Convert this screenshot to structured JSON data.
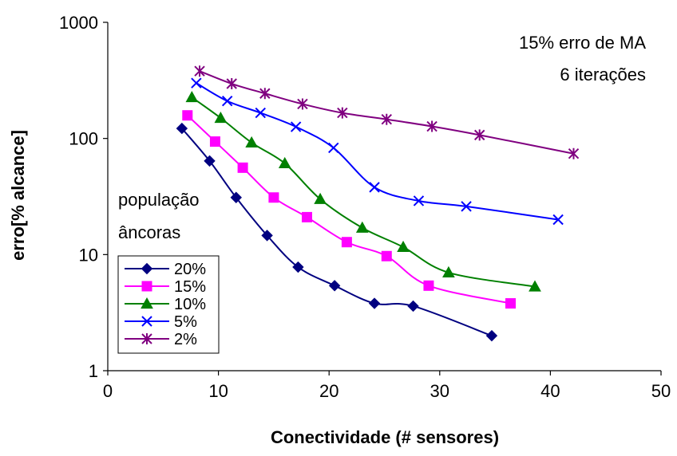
{
  "chart_data": {
    "type": "line",
    "xlabel": "Conectividade (# sensores)",
    "ylabel": "erro[% alcance]",
    "xlim": [
      0,
      50
    ],
    "ylim": [
      1,
      1000
    ],
    "y_scale": "log",
    "x_ticks": [
      "0",
      "10",
      "20",
      "30",
      "40",
      "50"
    ],
    "y_ticks": [
      "1",
      "10",
      "100",
      "1000"
    ],
    "grid": false,
    "legend_position": "bottom-left",
    "legend_title": [
      "população",
      "âncoras"
    ],
    "annotations": [
      "15% erro de MA",
      "6 iterações"
    ],
    "series": [
      {
        "name": "20%",
        "color": "#000080",
        "marker": "diamond",
        "x": [
          6.7,
          9.2,
          11.6,
          14.4,
          17.2,
          20.5,
          24.1,
          27.6,
          34.7
        ],
        "y": [
          122,
          64,
          31,
          14.6,
          7.8,
          5.4,
          3.8,
          3.6,
          2.0
        ]
      },
      {
        "name": "15%",
        "color": "#FF00FF",
        "marker": "square",
        "x": [
          7.2,
          9.7,
          12.2,
          15.0,
          18.0,
          21.6,
          25.2,
          29.0,
          36.4
        ],
        "y": [
          158,
          94,
          56,
          31,
          21,
          12.8,
          9.7,
          5.4,
          3.8
        ]
      },
      {
        "name": "10%",
        "color": "#008000",
        "marker": "triangle",
        "x": [
          7.6,
          10.2,
          13.0,
          16.0,
          19.2,
          23.0,
          26.7,
          30.8,
          38.6
        ],
        "y": [
          226,
          150,
          92,
          61,
          30,
          17,
          11.6,
          7.0,
          5.3
        ]
      },
      {
        "name": "5%",
        "color": "#0000FF",
        "marker": "x",
        "x": [
          8.0,
          10.8,
          13.8,
          17.0,
          20.4,
          24.1,
          28.1,
          32.4,
          40.7
        ],
        "y": [
          300,
          210,
          166,
          126,
          83,
          38,
          29,
          26,
          20
        ]
      },
      {
        "name": "2%",
        "color": "#800080",
        "marker": "star",
        "x": [
          8.3,
          11.2,
          14.2,
          17.6,
          21.2,
          25.2,
          29.3,
          33.6,
          42.1
        ],
        "y": [
          380,
          296,
          244,
          198,
          166,
          146,
          127,
          107,
          74
        ]
      }
    ]
  }
}
